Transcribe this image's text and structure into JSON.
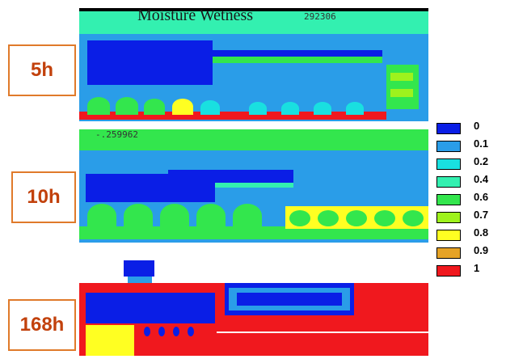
{
  "figure": {
    "title": "Moisture Wetness",
    "readouts": {
      "top": "292306",
      "middle": "-.259962"
    },
    "panels": [
      {
        "label": "5h"
      },
      {
        "label": "10h"
      },
      {
        "label": "168h"
      }
    ]
  },
  "legend": {
    "items": [
      {
        "value": "0",
        "color": "#0a1ee6"
      },
      {
        "value": "0.1",
        "color": "#2a9de8"
      },
      {
        "value": "0.2",
        "color": "#19e0e0"
      },
      {
        "value": "0.4",
        "color": "#33f0b0"
      },
      {
        "value": "0.6",
        "color": "#33e64d"
      },
      {
        "value": "0.7",
        "color": "#9ef21d"
      },
      {
        "value": "0.8",
        "color": "#ffff22"
      },
      {
        "value": "0.9",
        "color": "#e6a326"
      },
      {
        "value": "1",
        "color": "#f0181e"
      }
    ]
  }
}
